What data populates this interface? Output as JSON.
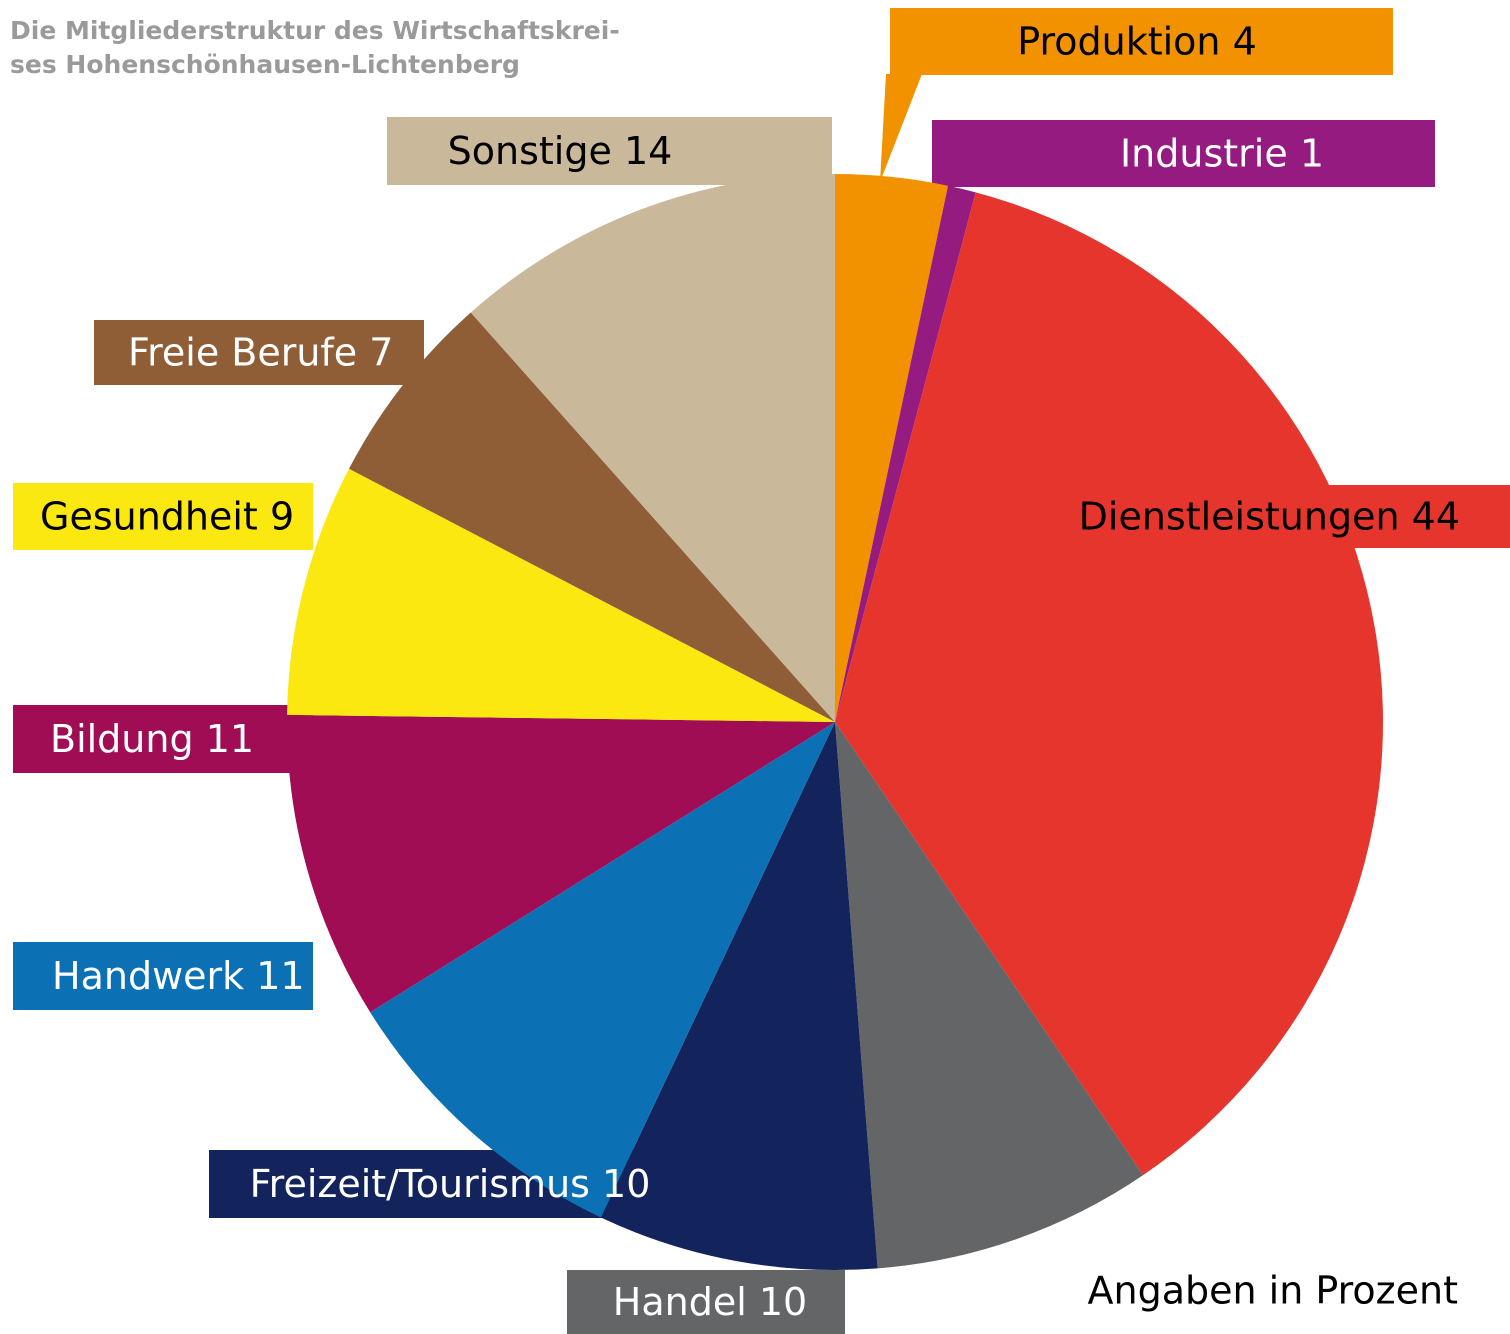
{
  "chart_data": {
    "type": "pie",
    "title": [
      "Die Mitgliederstruktur des Wirtschaftskrei-",
      "ses Hohenschönhausen-Lichtenberg"
    ],
    "categories": [
      "Produktion",
      "Industrie",
      "Dienstleistungen",
      "Handel",
      "Freizeit/Tourismus",
      "Handwerk",
      "Bildung",
      "Gesundheit",
      "Freie Berufe",
      "Sonstige"
    ],
    "values": [
      4,
      1,
      44,
      10,
      10,
      11,
      11,
      9,
      7,
      14
    ],
    "colors": [
      "#f39200",
      "#951b81",
      "#e5352d",
      "#646567",
      "#13235b",
      "#0b71b4",
      "#a00d55",
      "#fce811",
      "#8f5e37",
      "#c9b99a"
    ],
    "note": "Angaben in Prozent"
  }
}
